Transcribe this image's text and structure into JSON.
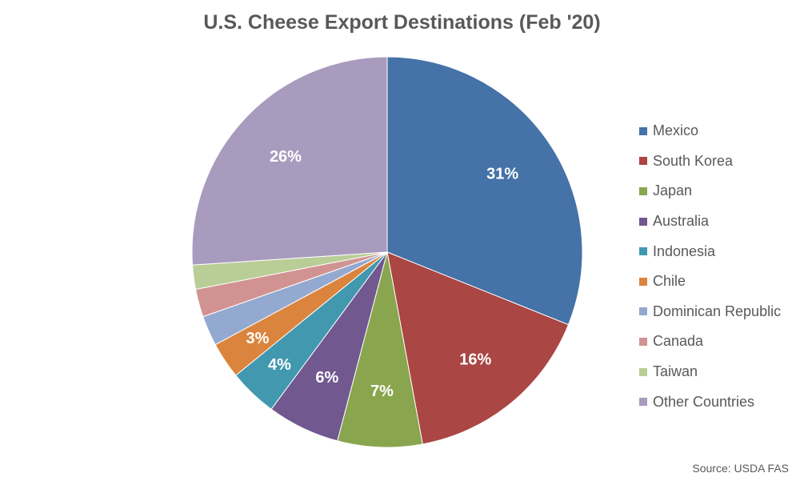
{
  "chart_data": {
    "type": "pie",
    "title": "U.S. Cheese Export Destinations (Feb '20)",
    "source": "Source: USDA FAS",
    "legend_position": "right",
    "slices": [
      {
        "name": "Mexico",
        "value": 31,
        "label": "31%",
        "color": "#4572A7"
      },
      {
        "name": "South Korea",
        "value": 16,
        "label": "16%",
        "color": "#AA4643"
      },
      {
        "name": "Japan",
        "value": 7,
        "label": "7%",
        "color": "#89A54E"
      },
      {
        "name": "Australia",
        "value": 6,
        "label": "6%",
        "color": "#71588F"
      },
      {
        "name": "Indonesia",
        "value": 4,
        "label": "4%",
        "color": "#4198AF"
      },
      {
        "name": "Chile",
        "value": 3,
        "label": "3%",
        "color": "#DB843D"
      },
      {
        "name": "Dominican Republic",
        "value": 2.5,
        "label": "",
        "color": "#93A9CF"
      },
      {
        "name": "Canada",
        "value": 2.3,
        "label": "",
        "color": "#D19392"
      },
      {
        "name": "Taiwan",
        "value": 2.0,
        "label": "",
        "color": "#B9CD96"
      },
      {
        "name": "Other Countries",
        "value": 26,
        "label": "26%",
        "color": "#A99BBD"
      }
    ]
  }
}
